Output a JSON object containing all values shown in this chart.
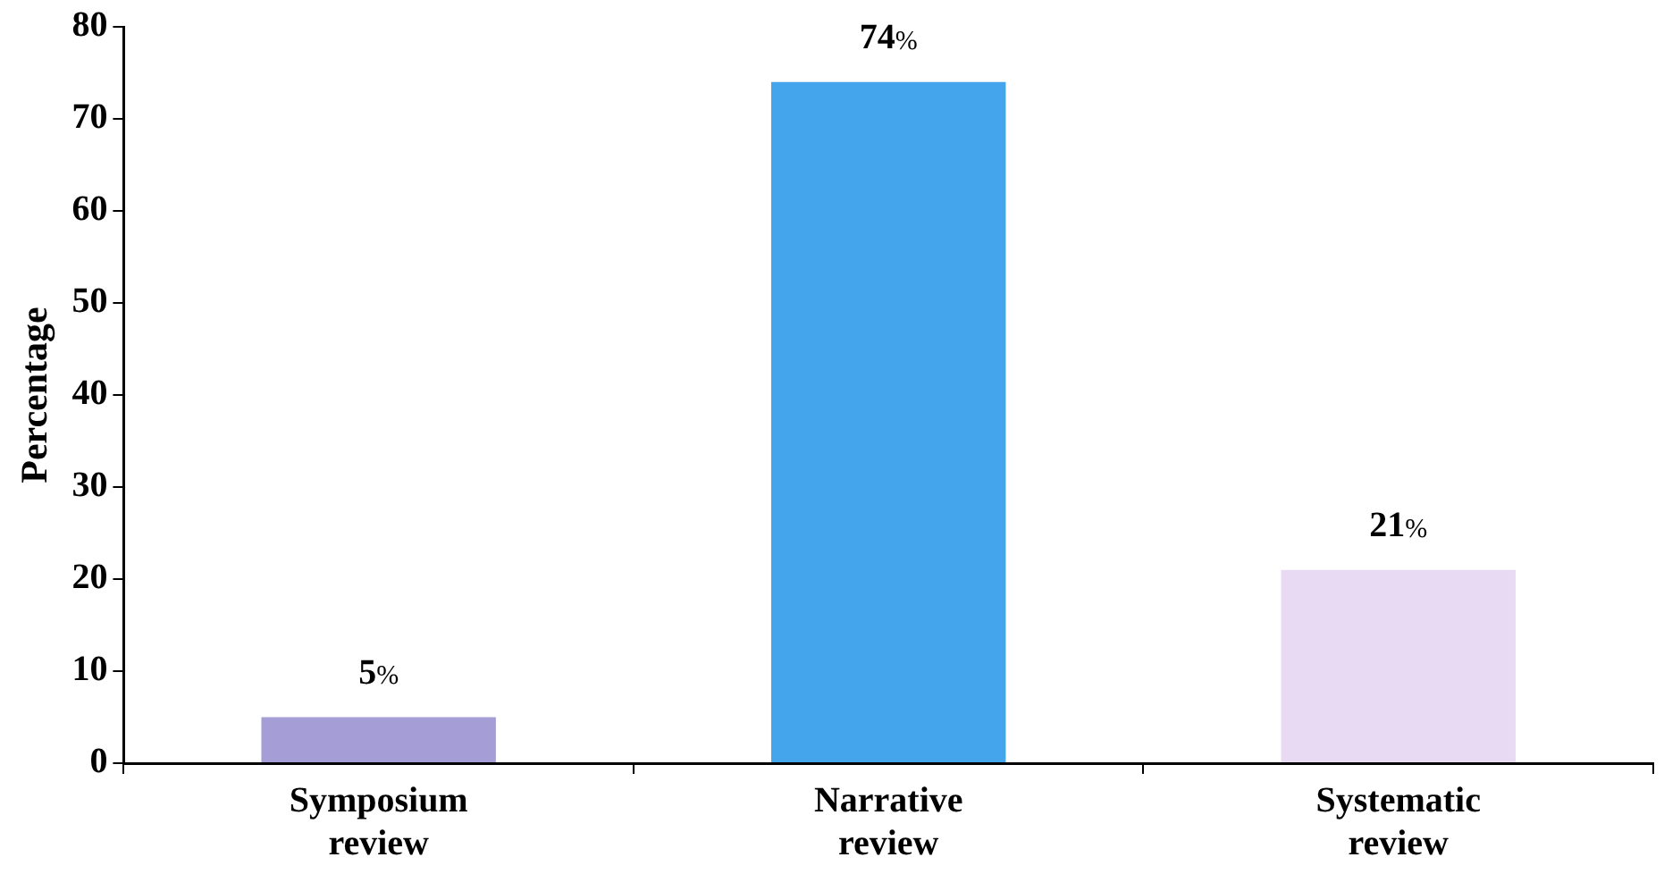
{
  "chart_data": {
    "type": "bar",
    "ylabel": "Percentage",
    "categories": [
      "Symposium review",
      "Narrative review",
      "Systematic review"
    ],
    "values": [
      5,
      74,
      21
    ],
    "colors": [
      "#a59ed6",
      "#45a5ec",
      "#e9daf4"
    ],
    "value_labels": [
      "5%",
      "74%",
      "21%"
    ],
    "ylim": [
      0,
      80
    ],
    "yticks": [
      0,
      10,
      20,
      30,
      40,
      50,
      60,
      70,
      80
    ],
    "grid": false,
    "legend": false
  }
}
